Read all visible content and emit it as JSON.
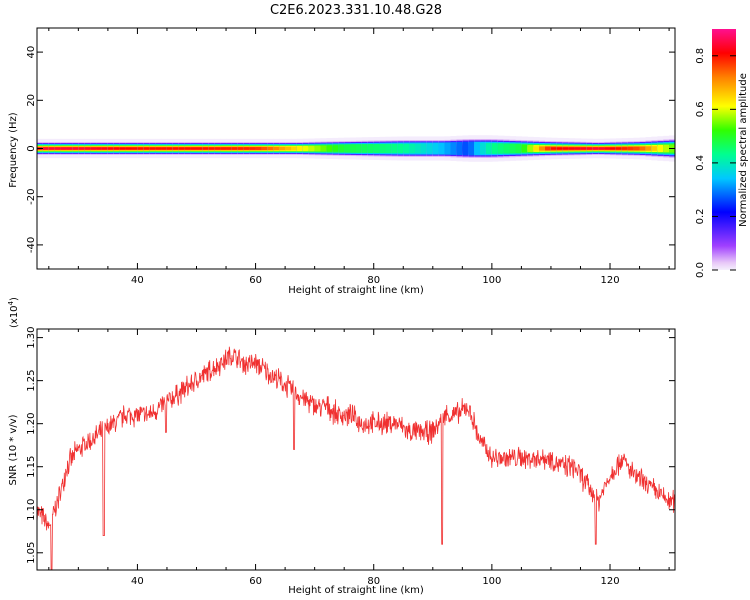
{
  "title": "C2E6.2023.331.10.48.G28",
  "chart_data": [
    {
      "type": "heatmap",
      "xlabel": "Height of straight line (km)",
      "ylabel": "Frequency (Hz)",
      "xlim": [
        23,
        131
      ],
      "ylim": [
        -50,
        50
      ],
      "xticks": [
        40,
        60,
        80,
        100,
        120
      ],
      "yticks": [
        -40,
        -20,
        0,
        20,
        40
      ],
      "band": {
        "x": [
          23,
          30,
          40,
          50,
          60,
          67,
          75,
          85,
          92,
          96,
          100,
          105,
          110,
          118,
          125,
          131
        ],
        "halfwidth_hz": [
          3.0,
          3.0,
          3.0,
          3.0,
          3.0,
          3.0,
          3.5,
          4.0,
          4.0,
          4.5,
          4.5,
          4.0,
          3.5,
          3.0,
          3.5,
          4.5
        ],
        "peak_amplitude": [
          0.85,
          0.85,
          0.8,
          0.8,
          0.78,
          0.65,
          0.5,
          0.45,
          0.35,
          0.3,
          0.45,
          0.5,
          0.8,
          0.85,
          0.75,
          0.55
        ]
      },
      "colorbar": {
        "label": "Normalized spectral amplitude",
        "min": 0.0,
        "max": 0.9,
        "ticks": [
          "0.0",
          "0.2",
          "0.4",
          "0.6",
          "0.8"
        ],
        "colors": [
          "#f5f0fc",
          "#e8c8f8",
          "#a040ff",
          "#0000ff",
          "#00c8ff",
          "#00ff90",
          "#30ff00",
          "#ffff00",
          "#ff8000",
          "#ff0000",
          "#ff1090"
        ]
      }
    },
    {
      "type": "line",
      "xlabel": "Height of straight line (km)",
      "ylabel": "SNR (10 * v/v)",
      "multiplier_label": "(x10",
      "multiplier_exp": "4",
      "multiplier_close": ")",
      "xlim": [
        23,
        131
      ],
      "ylim": [
        1.03,
        1.31
      ],
      "xticks": [
        40,
        60,
        80,
        100,
        120
      ],
      "yticks": [
        "1.05",
        "1.10",
        "1.15",
        "1.20",
        "1.25",
        "1.30"
      ],
      "color": "#f03030",
      "x": [
        23,
        24,
        25,
        26,
        27,
        28,
        30,
        32,
        34,
        36,
        38,
        40,
        42,
        44,
        46,
        48,
        50,
        52,
        54,
        56,
        58,
        60,
        62,
        64,
        66,
        68,
        70,
        72,
        74,
        76,
        78,
        80,
        82,
        84,
        86,
        88,
        90,
        92,
        94,
        96,
        98,
        100,
        102,
        104,
        106,
        108,
        110,
        112,
        114,
        116,
        118,
        120,
        122,
        124,
        126,
        128,
        130,
        131
      ],
      "y": [
        1.1,
        1.09,
        1.08,
        1.1,
        1.12,
        1.15,
        1.17,
        1.18,
        1.19,
        1.2,
        1.21,
        1.21,
        1.21,
        1.22,
        1.23,
        1.24,
        1.25,
        1.26,
        1.27,
        1.28,
        1.27,
        1.27,
        1.26,
        1.25,
        1.24,
        1.23,
        1.22,
        1.22,
        1.21,
        1.21,
        1.2,
        1.2,
        1.2,
        1.2,
        1.19,
        1.19,
        1.19,
        1.21,
        1.21,
        1.22,
        1.18,
        1.16,
        1.16,
        1.16,
        1.16,
        1.16,
        1.16,
        1.15,
        1.15,
        1.13,
        1.11,
        1.14,
        1.16,
        1.14,
        1.13,
        1.12,
        1.11,
        1.11
      ],
      "spikes": [
        [
          25.5,
          1.03
        ],
        [
          34.3,
          1.07
        ],
        [
          44.8,
          1.19
        ],
        [
          66.5,
          1.17
        ],
        [
          91.6,
          1.06
        ],
        [
          117.6,
          1.06
        ]
      ],
      "noise_amplitude": 0.02
    }
  ]
}
